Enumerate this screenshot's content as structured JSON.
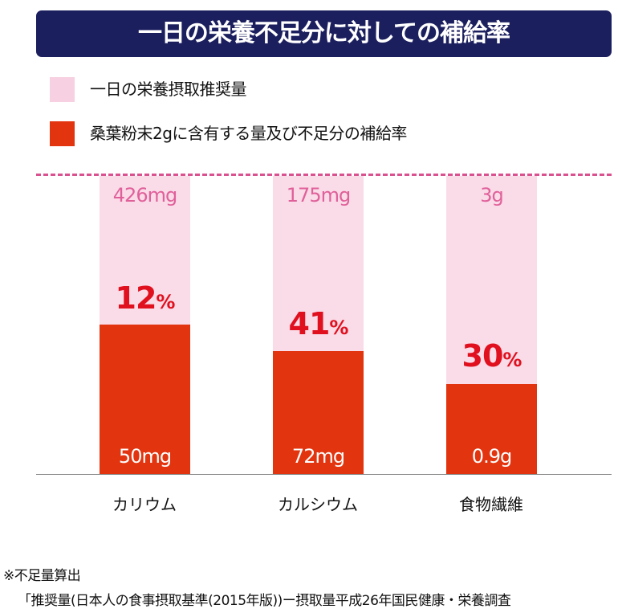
{
  "chart_data": {
    "type": "bar",
    "title": "一日の栄養不足分に対しての補給率",
    "legend": [
      "一日の栄養摂取推奨量",
      "桑葉粉末2gに含有する量及び不足分の補給率"
    ],
    "legend_placement": "top-left",
    "categories": [
      "カリウム",
      "カルシウム",
      "食物繊維"
    ],
    "recommended": [
      "426mg",
      "175mg",
      "3g"
    ],
    "contained": [
      "50mg",
      "72mg",
      "0.9g"
    ],
    "percent_values": [
      12,
      41,
      30
    ],
    "percent_labels": [
      "12",
      "41",
      "30"
    ],
    "percent_unit": "%",
    "colors": {
      "recommended": "#fadbe8",
      "contained": "#e2340f",
      "title_bg": "#1b1f5e"
    }
  },
  "notes": [
    "※不足量算出",
    "「推奨量(日本人の食事摂取基準(2015年版))ー摂取量平成26年国民健康・栄養調査"
  ]
}
